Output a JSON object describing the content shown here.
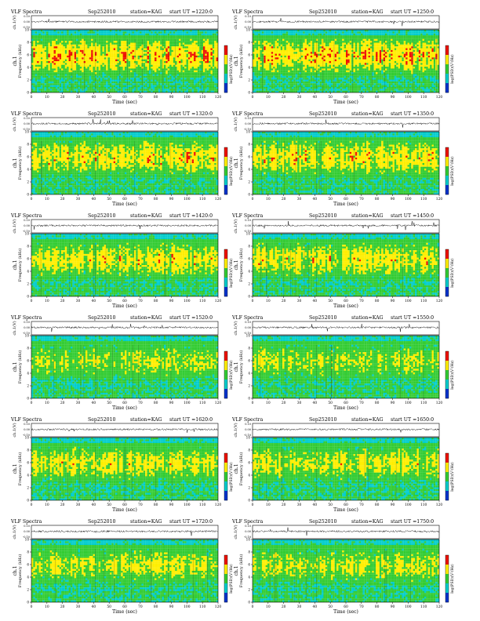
{
  "chart_data": [
    {
      "type": "heatmap",
      "title": "VLF Spectra",
      "date": "Sep252010",
      "station": "station=KAG",
      "start": "start  UT  =1220:0",
      "ch_label": "ch.1(V)",
      "xlabel": "Time (sec)",
      "ylabel": "ch.1",
      "ylabel2": "Frequency (kHz)",
      "colorbar_label": "log(PSD)(V²/Hz)",
      "xlim": [
        0,
        120
      ],
      "ylim": [
        0,
        10
      ],
      "xticks": [
        "0",
        "10",
        "20",
        "30",
        "40",
        "50",
        "60",
        "70",
        "80",
        "90",
        "100",
        "110",
        "120"
      ],
      "yticks": [
        "0",
        "2",
        "4",
        "6",
        "8",
        "10"
      ],
      "vticks": [
        "0.10",
        "0.00",
        "-0.10"
      ],
      "intensity": 0.85
    },
    {
      "type": "heatmap",
      "title": "VLF Spectra",
      "date": "Sep252010",
      "station": "station=KAG",
      "start": "start  UT  =1250:0",
      "ch_label": "ch.1(V)",
      "xlabel": "Time (sec)",
      "ylabel": "ch.1",
      "ylabel2": "Frequency (kHz)",
      "colorbar_label": "log(PSD)(V²/Hz)",
      "xlim": [
        0,
        120
      ],
      "ylim": [
        0,
        10
      ],
      "xticks": [
        "0",
        "10",
        "20",
        "30",
        "40",
        "50",
        "60",
        "70",
        "80",
        "90",
        "100",
        "110",
        "120"
      ],
      "yticks": [
        "0",
        "2",
        "4",
        "6",
        "8",
        "10"
      ],
      "vticks": [
        "0.10",
        "0.00",
        "-0.10"
      ],
      "intensity": 0.85
    },
    {
      "type": "heatmap",
      "title": "VLF Spectra",
      "date": "Sep252010",
      "station": "station=KAG",
      "start": "start  UT  =1320:0",
      "ch_label": "ch.1(V)",
      "xlabel": "Time (sec)",
      "ylabel": "ch.1",
      "ylabel2": "Frequency (kHz)",
      "colorbar_label": "log(PSD)(V²/Hz)",
      "xlim": [
        0,
        120
      ],
      "ylim": [
        0,
        10
      ],
      "xticks": [
        "0",
        "10",
        "20",
        "30",
        "40",
        "50",
        "60",
        "70",
        "80",
        "90",
        "100",
        "110",
        "120"
      ],
      "yticks": [
        "0",
        "2",
        "4",
        "6",
        "8",
        "10"
      ],
      "vticks": [
        "0.10",
        "0.00",
        "-0.10"
      ],
      "intensity": 0.75
    },
    {
      "type": "heatmap",
      "title": "VLF Spectra",
      "date": "Sep252010",
      "station": "station=KAG",
      "start": "start  UT  =1350:0",
      "ch_label": "ch.1(V)",
      "xlabel": "Time (sec)",
      "ylabel": "ch.1",
      "ylabel2": "Frequency (kHz)",
      "colorbar_label": "log(PSD)(V²/Hz)",
      "xlim": [
        0,
        120
      ],
      "ylim": [
        0,
        10
      ],
      "xticks": [
        "0",
        "10",
        "20",
        "30",
        "40",
        "50",
        "60",
        "70",
        "80",
        "90",
        "100",
        "110",
        "120"
      ],
      "yticks": [
        "0",
        "2",
        "4",
        "6",
        "8",
        "10"
      ],
      "vticks": [
        "0.10",
        "0.00",
        "-0.10"
      ],
      "intensity": 0.75
    },
    {
      "type": "heatmap",
      "title": "VLF Spectra",
      "date": "Sep252010",
      "station": "station=KAG",
      "start": "start  UT  =1420:0",
      "ch_label": "ch.1(V)",
      "xlabel": "Time (sec)",
      "ylabel": "ch.1",
      "ylabel2": "Frequency (kHz)",
      "colorbar_label": "log(PSD)(V²/Hz)",
      "xlim": [
        0,
        120
      ],
      "ylim": [
        0,
        10
      ],
      "xticks": [
        "0",
        "10",
        "20",
        "30",
        "40",
        "50",
        "60",
        "70",
        "80",
        "90",
        "100",
        "110",
        "120"
      ],
      "yticks": [
        "0",
        "2",
        "4",
        "6",
        "8",
        "10"
      ],
      "vticks": [
        "0.10",
        "0.00",
        "-0.10"
      ],
      "intensity": 0.7
    },
    {
      "type": "heatmap",
      "title": "VLF Spectra",
      "date": "Sep252010",
      "station": "station=KAG",
      "start": "start  UT  =1450:0",
      "ch_label": "ch.1(V)",
      "xlabel": "Time (sec)",
      "ylabel": "ch.1",
      "ylabel2": "Frequency (kHz)",
      "colorbar_label": "log(PSD)(V²/Hz)",
      "xlim": [
        0,
        120
      ],
      "ylim": [
        0,
        10
      ],
      "xticks": [
        "0",
        "10",
        "20",
        "30",
        "40",
        "50",
        "60",
        "70",
        "80",
        "90",
        "100",
        "110",
        "120"
      ],
      "yticks": [
        "0",
        "2",
        "4",
        "6",
        "8",
        "10"
      ],
      "vticks": [
        "0.10",
        "0.00",
        "-0.10"
      ],
      "intensity": 0.7
    },
    {
      "type": "heatmap",
      "title": "VLF Spectra",
      "date": "Sep252010",
      "station": "station=KAG",
      "start": "start  UT  =1520:0",
      "ch_label": "ch.1(V)",
      "xlabel": "Time (sec)",
      "ylabel": "ch.1",
      "ylabel2": "Frequency (kHz)",
      "colorbar_label": "log(PSD)(V²/Hz)",
      "xlim": [
        0,
        120
      ],
      "ylim": [
        0,
        10
      ],
      "xticks": [
        "0",
        "10",
        "20",
        "30",
        "40",
        "50",
        "60",
        "70",
        "80",
        "90",
        "100",
        "110",
        "120"
      ],
      "yticks": [
        "0",
        "2",
        "4",
        "6",
        "8",
        "10"
      ],
      "vticks": [
        "0.10",
        "0.00",
        "-0.10"
      ],
      "intensity": 0.55
    },
    {
      "type": "heatmap",
      "title": "VLF Spectra",
      "date": "Sep252010",
      "station": "station=KAG",
      "start": "start  UT  =1550:0",
      "ch_label": "ch.1(V)",
      "xlabel": "Time (sec)",
      "ylabel": "ch.1",
      "ylabel2": "Frequency (kHz)",
      "colorbar_label": "log(PSD)(V²/Hz)",
      "xlim": [
        0,
        120
      ],
      "ylim": [
        0,
        10
      ],
      "xticks": [
        "0",
        "10",
        "20",
        "30",
        "40",
        "50",
        "60",
        "70",
        "80",
        "90",
        "100",
        "110",
        "120"
      ],
      "yticks": [
        "0",
        "2",
        "4",
        "6",
        "8",
        "10"
      ],
      "vticks": [
        "0.10",
        "0.00",
        "-0.10"
      ],
      "intensity": 0.55
    },
    {
      "type": "heatmap",
      "title": "VLF Spectra",
      "date": "Sep252010",
      "station": "station=KAG",
      "start": "start  UT  =1620:0",
      "ch_label": "ch.1(V)",
      "xlabel": "Time (sec)",
      "ylabel": "ch.1",
      "ylabel2": "Frequency (kHz)",
      "colorbar_label": "log(PSD)(V²/Hz)",
      "xlim": [
        0,
        120
      ],
      "ylim": [
        0,
        10
      ],
      "xticks": [
        "0",
        "10",
        "20",
        "30",
        "40",
        "50",
        "60",
        "70",
        "80",
        "90",
        "100",
        "110",
        "120"
      ],
      "yticks": [
        "0",
        "2",
        "4",
        "6",
        "8",
        "10"
      ],
      "vticks": [
        "0.10",
        "0.00",
        "-0.10"
      ],
      "intensity": 0.65
    },
    {
      "type": "heatmap",
      "title": "VLF Spectra",
      "date": "Sep252010",
      "station": "station=KAG",
      "start": "start  UT  =1650:0",
      "ch_label": "ch.1(V)",
      "xlabel": "Time (sec)",
      "ylabel": "ch.1",
      "ylabel2": "Frequency (kHz)",
      "colorbar_label": "log(PSD)(V²/Hz)",
      "xlim": [
        0,
        120
      ],
      "ylim": [
        0,
        10
      ],
      "xticks": [
        "0",
        "10",
        "20",
        "30",
        "40",
        "50",
        "60",
        "70",
        "80",
        "90",
        "100",
        "110",
        "120"
      ],
      "yticks": [
        "0",
        "2",
        "4",
        "6",
        "8",
        "10"
      ],
      "vticks": [
        "0.10",
        "0.00",
        "-0.10"
      ],
      "intensity": 0.65
    },
    {
      "type": "heatmap",
      "title": "VLF Spectra",
      "date": "Sep252010",
      "station": "station=KAG",
      "start": "start  UT  =1720:0",
      "ch_label": "ch.1(V)",
      "xlabel": "Time (sec)",
      "ylabel": "ch.1",
      "ylabel2": "Frequency (kHz)",
      "colorbar_label": "log(PSD)(V²/Hz)",
      "xlim": [
        0,
        120
      ],
      "ylim": [
        0,
        10
      ],
      "xticks": [
        "0",
        "10",
        "20",
        "30",
        "40",
        "50",
        "60",
        "70",
        "80",
        "90",
        "100",
        "110",
        "120"
      ],
      "yticks": [
        "0",
        "2",
        "4",
        "6",
        "8",
        "10"
      ],
      "vticks": [
        "0.10",
        "0.00",
        "-0.10"
      ],
      "intensity": 0.6
    },
    {
      "type": "heatmap",
      "title": "VLF Spectra",
      "date": "Sep252010",
      "station": "station=KAG",
      "start": "start  UT  =1750:0",
      "ch_label": "ch.1(V)",
      "xlabel": "Time (sec)",
      "ylabel": "ch.1",
      "ylabel2": "Frequency (kHz)",
      "colorbar_label": "log(PSD)(V²/Hz)",
      "xlim": [
        0,
        120
      ],
      "ylim": [
        0,
        10
      ],
      "xticks": [
        "0",
        "10",
        "20",
        "30",
        "40",
        "50",
        "60",
        "70",
        "80",
        "90",
        "100",
        "110",
        "120"
      ],
      "yticks": [
        "0",
        "2",
        "4",
        "6",
        "8",
        "10"
      ],
      "vticks": [
        "0.10",
        "0.00",
        "-0.10"
      ],
      "intensity": 0.6
    }
  ],
  "colors": {
    "low": "#0033cc",
    "mid_low": "#00cccc",
    "mid": "#33cc33",
    "mid_high": "#ffee00",
    "high": "#ee1100"
  }
}
